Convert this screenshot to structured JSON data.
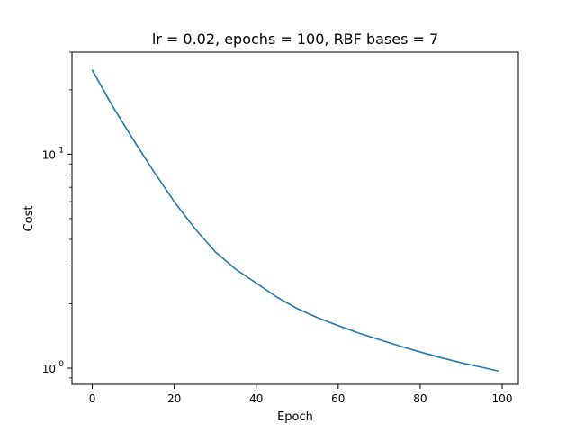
{
  "chart_data": {
    "type": "line",
    "title": "lr = 0.02, epochs = 100, RBF bases = 7",
    "xlabel": "Epoch",
    "ylabel": "Cost",
    "yscale": "log",
    "xlim": [
      -4.95,
      103.95
    ],
    "ylim": [
      0.84,
      30
    ],
    "grid": false,
    "xticks": [
      0,
      20,
      40,
      60,
      80,
      100
    ],
    "xtick_labels": [
      "0",
      "20",
      "40",
      "60",
      "80",
      "100"
    ],
    "yticks": [
      1,
      10
    ],
    "ytick_labels": [
      {
        "base": "10",
        "exp": "0"
      },
      {
        "base": "10",
        "exp": "1"
      }
    ],
    "series": [
      {
        "color": "#1f77b4",
        "x": [
          0,
          5,
          10,
          15,
          20,
          25,
          30,
          35,
          40,
          45,
          50,
          55,
          60,
          65,
          70,
          75,
          80,
          85,
          90,
          95,
          99
        ],
        "y": [
          24.7,
          16.7,
          11.7,
          8.3,
          6.0,
          4.5,
          3.5,
          2.9,
          2.5,
          2.15,
          1.9,
          1.72,
          1.58,
          1.46,
          1.36,
          1.27,
          1.19,
          1.12,
          1.06,
          1.01,
          0.97
        ]
      }
    ]
  }
}
